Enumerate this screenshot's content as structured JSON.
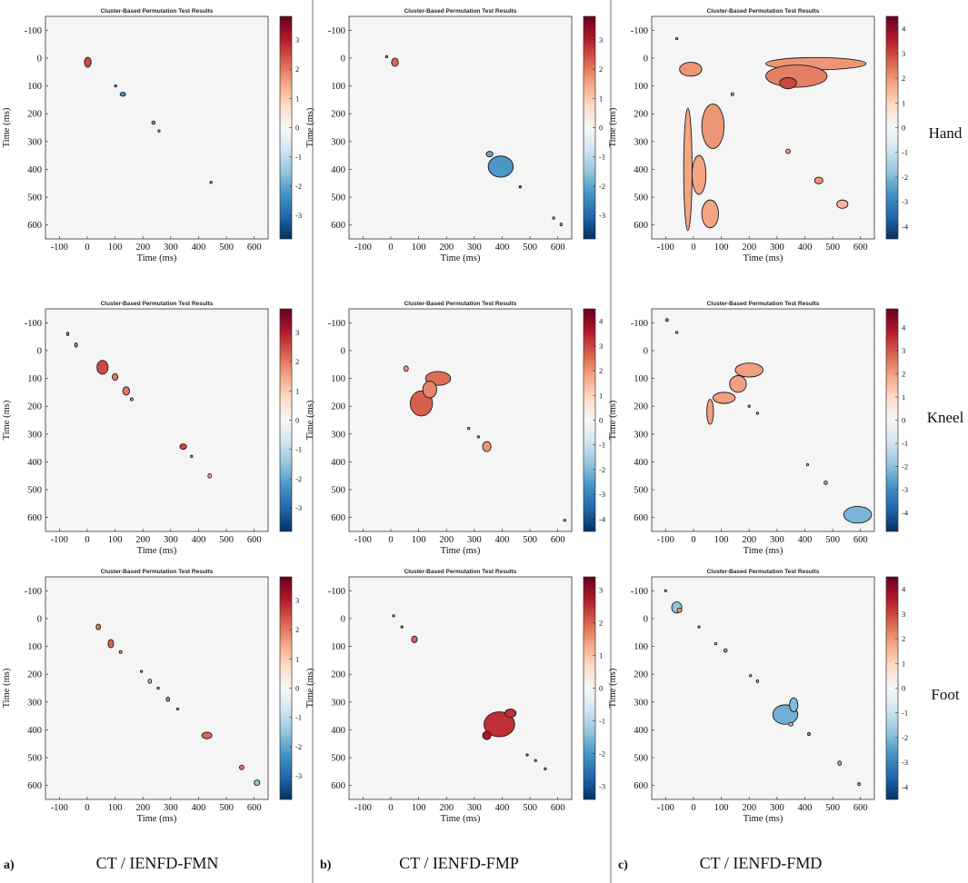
{
  "figure": {
    "panel_letters": [
      "a)",
      "b)",
      "c)"
    ],
    "column_titles": [
      "CT / IENFD-FMN",
      "CT / IENFD-FMP",
      "CT / IENFD-FMD"
    ],
    "row_labels": [
      "Hand",
      "Kneel",
      "Foot"
    ],
    "colors": {
      "plot_background": "#f5f5f5",
      "divider": "#888888",
      "cluster_outline": "#1a1a1a",
      "colormap": [
        "#053061",
        "#2166ac",
        "#4393c3",
        "#92c5de",
        "#d1e5f0",
        "#f7f7f7",
        "#fddbc7",
        "#f4a582",
        "#d6604d",
        "#b2182b",
        "#67001f"
      ]
    }
  },
  "chart_data": [
    {
      "type": "heatmap",
      "panel": "a",
      "row": "Hand",
      "title": "Cluster-Based Permutation Test Results",
      "xlabel": "Time (ms)",
      "ylabel": "Time (ms)",
      "xlim": [
        -150,
        650
      ],
      "ylim": [
        -150,
        650
      ],
      "xticks": [
        -100,
        0,
        100,
        200,
        300,
        400,
        500,
        600
      ],
      "yticks": [
        -100,
        0,
        100,
        200,
        300,
        400,
        500,
        600
      ],
      "colorbar": {
        "range": [
          -3.8,
          3.8
        ],
        "ticks": [
          -3,
          -2,
          -1,
          0,
          1,
          2,
          3
        ]
      },
      "clusters": [
        {
          "x": 2,
          "y": 15,
          "rx": 12,
          "ry": 18,
          "value": 2.5
        },
        {
          "x": 128,
          "y": 130,
          "rx": 10,
          "ry": 7,
          "value": -2.2
        },
        {
          "x": 102,
          "y": 100,
          "rx": 3,
          "ry": 3,
          "value": -2.0
        },
        {
          "x": 238,
          "y": 232,
          "rx": 6,
          "ry": 6,
          "value": -2.0
        },
        {
          "x": 258,
          "y": 262,
          "rx": 4,
          "ry": 4,
          "value": -1.5
        },
        {
          "x": 445,
          "y": 447,
          "rx": 3,
          "ry": 3,
          "value": -1.5
        }
      ]
    },
    {
      "type": "heatmap",
      "panel": "b",
      "row": "Hand",
      "title": "Cluster-Based Permutation Test Results",
      "xlabel": "Time (ms)",
      "ylabel": "Time (ms)",
      "xlim": [
        -150,
        650
      ],
      "ylim": [
        -150,
        650
      ],
      "xticks": [
        -100,
        0,
        100,
        200,
        300,
        400,
        500,
        600
      ],
      "yticks": [
        -100,
        0,
        100,
        200,
        300,
        400,
        500,
        600
      ],
      "colorbar": {
        "range": [
          -3.8,
          3.8
        ],
        "ticks": [
          -3,
          -2,
          -1,
          0,
          1,
          2,
          3
        ]
      },
      "clusters": [
        {
          "x": 15,
          "y": 15,
          "rx": 12,
          "ry": 15,
          "value": 2.2
        },
        {
          "x": -15,
          "y": -5,
          "rx": 4,
          "ry": 4,
          "value": 2.0
        },
        {
          "x": 395,
          "y": 390,
          "rx": 45,
          "ry": 38,
          "value": -2.2
        },
        {
          "x": 355,
          "y": 345,
          "rx": 12,
          "ry": 10,
          "value": -2.0
        },
        {
          "x": 465,
          "y": 463,
          "rx": 4,
          "ry": 4,
          "value": -2.0
        },
        {
          "x": 585,
          "y": 575,
          "rx": 4,
          "ry": 4,
          "value": -1.5
        },
        {
          "x": 612,
          "y": 598,
          "rx": 3,
          "ry": 5,
          "value": -1.5
        }
      ]
    },
    {
      "type": "heatmap",
      "panel": "c",
      "row": "Hand",
      "title": "Cluster-Based Permutation Test Results",
      "xlabel": "Time (ms)",
      "ylabel": "Time (ms)",
      "xlim": [
        -150,
        650
      ],
      "ylim": [
        -150,
        650
      ],
      "xticks": [
        -100,
        0,
        100,
        200,
        300,
        400,
        500,
        600
      ],
      "yticks": [
        -100,
        0,
        100,
        200,
        300,
        400,
        500,
        600
      ],
      "colorbar": {
        "range": [
          -4.5,
          4.5
        ],
        "ticks": [
          -4,
          -3,
          -2,
          -1,
          0,
          1,
          2,
          3,
          4
        ]
      },
      "clusters": [
        {
          "x": 440,
          "y": 20,
          "rx": 180,
          "ry": 22,
          "value": 2.0
        },
        {
          "x": 370,
          "y": 65,
          "rx": 110,
          "ry": 40,
          "value": 2.3
        },
        {
          "x": 340,
          "y": 90,
          "rx": 30,
          "ry": 20,
          "value": 3.0
        },
        {
          "x": -10,
          "y": 40,
          "rx": 40,
          "ry": 25,
          "value": 2.0
        },
        {
          "x": 70,
          "y": 245,
          "rx": 40,
          "ry": 80,
          "value": 2.0
        },
        {
          "x": -20,
          "y": 400,
          "rx": 15,
          "ry": 220,
          "value": 1.8
        },
        {
          "x": 20,
          "y": 420,
          "rx": 25,
          "ry": 70,
          "value": 1.8
        },
        {
          "x": 60,
          "y": 560,
          "rx": 30,
          "ry": 50,
          "value": 1.8
        },
        {
          "x": 450,
          "y": 440,
          "rx": 15,
          "ry": 12,
          "value": 2.0
        },
        {
          "x": 535,
          "y": 525,
          "rx": 20,
          "ry": 15,
          "value": 1.5
        },
        {
          "x": 340,
          "y": 335,
          "rx": 8,
          "ry": 8,
          "value": 2.0
        },
        {
          "x": 140,
          "y": 130,
          "rx": 5,
          "ry": 5,
          "value": 1.5
        },
        {
          "x": -60,
          "y": -70,
          "rx": 3,
          "ry": 3,
          "value": 1.5
        }
      ]
    },
    {
      "type": "heatmap",
      "panel": "a",
      "row": "Kneel",
      "title": "Cluster-Based Permutation Test Results",
      "xlabel": "Time (ms)",
      "ylabel": "Time (ms)",
      "xlim": [
        -150,
        650
      ],
      "ylim": [
        -150,
        650
      ],
      "xticks": [
        -100,
        0,
        100,
        200,
        300,
        400,
        500,
        600
      ],
      "yticks": [
        -100,
        0,
        100,
        200,
        300,
        400,
        500,
        600
      ],
      "colorbar": {
        "range": [
          -3.8,
          3.8
        ],
        "ticks": [
          -3,
          -2,
          -1,
          0,
          1,
          2,
          3
        ]
      },
      "clusters": [
        {
          "x": -70,
          "y": -60,
          "rx": 4,
          "ry": 6,
          "value": 2.0
        },
        {
          "x": -40,
          "y": -20,
          "rx": 5,
          "ry": 8,
          "value": 2.0
        },
        {
          "x": 55,
          "y": 60,
          "rx": 20,
          "ry": 25,
          "value": 2.5
        },
        {
          "x": 100,
          "y": 95,
          "rx": 10,
          "ry": 12,
          "value": 2.0
        },
        {
          "x": 140,
          "y": 145,
          "rx": 12,
          "ry": 15,
          "value": 2.0
        },
        {
          "x": 160,
          "y": 175,
          "rx": 5,
          "ry": 5,
          "value": 1.5
        },
        {
          "x": 345,
          "y": 345,
          "rx": 12,
          "ry": 10,
          "value": 2.5
        },
        {
          "x": 375,
          "y": 380,
          "rx": 3,
          "ry": 3,
          "value": 1.5
        },
        {
          "x": 440,
          "y": 450,
          "rx": 6,
          "ry": 8,
          "value": 1.5
        }
      ]
    },
    {
      "type": "heatmap",
      "panel": "b",
      "row": "Kneel",
      "title": "Cluster-Based Permutation Test Results",
      "xlabel": "Time (ms)",
      "ylabel": "Time (ms)",
      "xlim": [
        -150,
        650
      ],
      "ylim": [
        -150,
        650
      ],
      "xticks": [
        -100,
        0,
        100,
        200,
        300,
        400,
        500,
        600
      ],
      "yticks": [
        -100,
        0,
        100,
        200,
        300,
        400,
        500,
        600
      ],
      "colorbar": {
        "range": [
          -4.5,
          4.5
        ],
        "ticks": [
          -4,
          -3,
          -2,
          -1,
          0,
          1,
          2,
          3,
          4
        ]
      },
      "clusters": [
        {
          "x": 170,
          "y": 100,
          "rx": 45,
          "ry": 25,
          "value": 2.5
        },
        {
          "x": 110,
          "y": 190,
          "rx": 40,
          "ry": 45,
          "value": 2.7
        },
        {
          "x": 140,
          "y": 140,
          "rx": 25,
          "ry": 30,
          "value": 2.2
        },
        {
          "x": 55,
          "y": 65,
          "rx": 8,
          "ry": 10,
          "value": 2.0
        },
        {
          "x": 345,
          "y": 345,
          "rx": 15,
          "ry": 18,
          "value": 2.0
        },
        {
          "x": 280,
          "y": 280,
          "rx": 3,
          "ry": 3,
          "value": 1.5
        },
        {
          "x": 315,
          "y": 310,
          "rx": 3,
          "ry": 3,
          "value": 1.5
        },
        {
          "x": 625,
          "y": 610,
          "rx": 2,
          "ry": 2,
          "value": -1.5
        }
      ]
    },
    {
      "type": "heatmap",
      "panel": "c",
      "row": "Kneel",
      "title": "Cluster-Based Permutation Test Results",
      "xlabel": "Time (ms)",
      "ylabel": "Time (ms)",
      "xlim": [
        -150,
        650
      ],
      "ylim": [
        -150,
        650
      ],
      "xticks": [
        -100,
        0,
        100,
        200,
        300,
        400,
        500,
        600
      ],
      "yticks": [
        -100,
        0,
        100,
        200,
        300,
        400,
        500,
        600
      ],
      "colorbar": {
        "range": [
          -4.8,
          4.8
        ],
        "ticks": [
          -4,
          -3,
          -2,
          -1,
          0,
          1,
          2,
          3,
          4
        ]
      },
      "clusters": [
        {
          "x": -95,
          "y": -110,
          "rx": 5,
          "ry": 5,
          "value": 2.0
        },
        {
          "x": -60,
          "y": -65,
          "rx": 3,
          "ry": 3,
          "value": -1.5
        },
        {
          "x": 200,
          "y": 70,
          "rx": 50,
          "ry": 25,
          "value": 2.0
        },
        {
          "x": 160,
          "y": 120,
          "rx": 30,
          "ry": 30,
          "value": 2.0
        },
        {
          "x": 110,
          "y": 170,
          "rx": 40,
          "ry": 20,
          "value": 2.0
        },
        {
          "x": 60,
          "y": 220,
          "rx": 12,
          "ry": 45,
          "value": 2.0
        },
        {
          "x": 200,
          "y": 200,
          "rx": 3,
          "ry": 3,
          "value": 1.5
        },
        {
          "x": 230,
          "y": 225,
          "rx": 3,
          "ry": 3,
          "value": 1.5
        },
        {
          "x": 410,
          "y": 410,
          "rx": 3,
          "ry": 3,
          "value": -1.5
        },
        {
          "x": 475,
          "y": 475,
          "rx": 6,
          "ry": 6,
          "value": -2.0
        },
        {
          "x": 590,
          "y": 590,
          "rx": 50,
          "ry": 30,
          "value": -2.2
        }
      ]
    },
    {
      "type": "heatmap",
      "panel": "a",
      "row": "Foot",
      "title": "Cluster-Based Permutation Test Results",
      "xlabel": "Time (ms)",
      "ylabel": "Time (ms)",
      "xlim": [
        -150,
        650
      ],
      "ylim": [
        -150,
        650
      ],
      "xticks": [
        -100,
        0,
        100,
        200,
        300,
        400,
        500,
        600
      ],
      "yticks": [
        -100,
        0,
        100,
        200,
        300,
        400,
        500,
        600
      ],
      "colorbar": {
        "range": [
          -3.8,
          3.8
        ],
        "ticks": [
          -3,
          -2,
          -1,
          0,
          1,
          2,
          3
        ]
      },
      "clusters": [
        {
          "x": 40,
          "y": 30,
          "rx": 8,
          "ry": 10,
          "value": 2.0
        },
        {
          "x": 85,
          "y": 90,
          "rx": 10,
          "ry": 15,
          "value": 2.2
        },
        {
          "x": 120,
          "y": 120,
          "rx": 5,
          "ry": 5,
          "value": 1.5
        },
        {
          "x": 195,
          "y": 190,
          "rx": 3,
          "ry": 3,
          "value": 1.5
        },
        {
          "x": 225,
          "y": 225,
          "rx": 6,
          "ry": 8,
          "value": -1.5
        },
        {
          "x": 255,
          "y": 250,
          "rx": 4,
          "ry": 4,
          "value": -1.5
        },
        {
          "x": 290,
          "y": 290,
          "rx": 6,
          "ry": 8,
          "value": -2.0
        },
        {
          "x": 325,
          "y": 325,
          "rx": 3,
          "ry": 3,
          "value": -1.5
        },
        {
          "x": 430,
          "y": 420,
          "rx": 18,
          "ry": 12,
          "value": 2.2
        },
        {
          "x": 555,
          "y": 535,
          "rx": 8,
          "ry": 8,
          "value": 2.0
        },
        {
          "x": 610,
          "y": 590,
          "rx": 10,
          "ry": 10,
          "value": -1.5
        }
      ]
    },
    {
      "type": "heatmap",
      "panel": "b",
      "row": "Foot",
      "title": "Cluster-Based Permutation Test Results",
      "xlabel": "Time (ms)",
      "ylabel": "Time (ms)",
      "xlim": [
        -150,
        650
      ],
      "ylim": [
        -150,
        650
      ],
      "xticks": [
        -100,
        0,
        100,
        200,
        300,
        400,
        500,
        600
      ],
      "yticks": [
        -100,
        0,
        100,
        200,
        300,
        400,
        500,
        600
      ],
      "colorbar": {
        "range": [
          -3.4,
          3.4
        ],
        "ticks": [
          -3,
          -2,
          -1,
          0,
          1,
          2,
          3
        ]
      },
      "clusters": [
        {
          "x": 10,
          "y": -10,
          "rx": 3,
          "ry": 3,
          "value": 1.5
        },
        {
          "x": 40,
          "y": 30,
          "rx": 4,
          "ry": 4,
          "value": 1.8
        },
        {
          "x": 85,
          "y": 75,
          "rx": 10,
          "ry": 12,
          "value": 2.0
        },
        {
          "x": 390,
          "y": 380,
          "rx": 55,
          "ry": 45,
          "value": 2.5
        },
        {
          "x": 345,
          "y": 420,
          "rx": 15,
          "ry": 15,
          "value": 2.8
        },
        {
          "x": 430,
          "y": 340,
          "rx": 20,
          "ry": 15,
          "value": 2.5
        },
        {
          "x": 490,
          "y": 490,
          "rx": 4,
          "ry": 4,
          "value": 1.8
        },
        {
          "x": 520,
          "y": 510,
          "rx": 4,
          "ry": 4,
          "value": 1.8
        },
        {
          "x": 555,
          "y": 540,
          "rx": 3,
          "ry": 3,
          "value": 1.5
        }
      ]
    },
    {
      "type": "heatmap",
      "panel": "c",
      "row": "Foot",
      "title": "Cluster-Based Permutation Test Results",
      "xlabel": "Time (ms)",
      "ylabel": "Time (ms)",
      "xlim": [
        -150,
        650
      ],
      "ylim": [
        -150,
        650
      ],
      "xticks": [
        -100,
        0,
        100,
        200,
        300,
        400,
        500,
        600
      ],
      "yticks": [
        -100,
        0,
        100,
        200,
        300,
        400,
        500,
        600
      ],
      "colorbar": {
        "range": [
          -4.5,
          4.5
        ],
        "ticks": [
          -4,
          -3,
          -2,
          -1,
          0,
          1,
          2,
          3,
          4
        ]
      },
      "clusters": [
        {
          "x": -60,
          "y": -40,
          "rx": 18,
          "ry": 20,
          "value": -1.8
        },
        {
          "x": -50,
          "y": -30,
          "rx": 8,
          "ry": 8,
          "value": 2.0
        },
        {
          "x": -100,
          "y": -100,
          "rx": 3,
          "ry": 3,
          "value": 1.5
        },
        {
          "x": 20,
          "y": 30,
          "rx": 3,
          "ry": 3,
          "value": 1.5
        },
        {
          "x": 80,
          "y": 90,
          "rx": 4,
          "ry": 4,
          "value": 1.5
        },
        {
          "x": 115,
          "y": 115,
          "rx": 6,
          "ry": 6,
          "value": 2.0
        },
        {
          "x": 205,
          "y": 205,
          "rx": 3,
          "ry": 3,
          "value": 1.5
        },
        {
          "x": 230,
          "y": 225,
          "rx": 4,
          "ry": 5,
          "value": 1.5
        },
        {
          "x": 330,
          "y": 345,
          "rx": 45,
          "ry": 35,
          "value": -2.2
        },
        {
          "x": 360,
          "y": 310,
          "rx": 15,
          "ry": 25,
          "value": -2.0
        },
        {
          "x": 350,
          "y": 380,
          "rx": 8,
          "ry": 6,
          "value": 1.5
        },
        {
          "x": 415,
          "y": 415,
          "rx": 5,
          "ry": 5,
          "value": -2.0
        },
        {
          "x": 525,
          "y": 520,
          "rx": 6,
          "ry": 8,
          "value": -1.8
        },
        {
          "x": 595,
          "y": 595,
          "rx": 5,
          "ry": 5,
          "value": -1.5
        }
      ]
    }
  ]
}
